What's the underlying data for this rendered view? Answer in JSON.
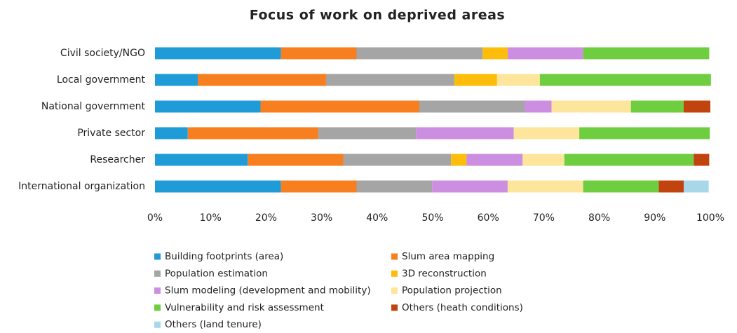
{
  "chart_data": {
    "type": "stacked_barh",
    "title": "Focus of work on deprived areas",
    "categories": [
      "Civil society/NGO",
      "Local government",
      "National government",
      "Private sector",
      "Researcher",
      "International organization"
    ],
    "series": [
      {
        "name": "Building footprints (area)",
        "color": "#1f9bd7",
        "values": [
          22.7,
          7.7,
          19.0,
          5.9,
          16.7,
          22.7
        ]
      },
      {
        "name": "Slum area mapping",
        "color": "#f77f1f",
        "values": [
          13.6,
          23.1,
          28.6,
          23.5,
          17.2,
          13.6
        ]
      },
      {
        "name": "Population estimation",
        "color": "#a5a5a5",
        "values": [
          22.7,
          23.1,
          19.0,
          17.6,
          19.4,
          13.6
        ]
      },
      {
        "name": " 3D reconstruction",
        "color": "#fdbd0a",
        "values": [
          4.5,
          7.7,
          0,
          0,
          2.8,
          0
        ]
      },
      {
        "name": "Slum modeling (development and mobility)",
        "color": "#cc8ee0",
        "values": [
          13.6,
          0,
          4.8,
          17.6,
          10.1,
          13.6
        ]
      },
      {
        "name": "Population projection",
        "color": "#fee59c",
        "values": [
          0,
          7.7,
          14.3,
          11.8,
          7.5,
          13.6
        ]
      },
      {
        "name": "Vulnerability and risk assessment",
        "color": "#6fcd40",
        "values": [
          22.7,
          30.8,
          9.5,
          23.5,
          23.3,
          13.6
        ]
      },
      {
        "name": "Others (heath conditions)",
        "color": "#c1440e",
        "values": [
          0,
          0,
          4.8,
          0,
          2.8,
          4.5
        ]
      },
      {
        "name": "Others (land tenure)",
        "color": "#a9d7ea",
        "values": [
          0,
          0,
          0,
          0,
          0,
          4.5
        ]
      }
    ],
    "xlim": [
      0,
      100
    ],
    "xticks": [
      {
        "value": 0,
        "label": "0%"
      },
      {
        "value": 10,
        "label": "10%"
      },
      {
        "value": 20,
        "label": "20%"
      },
      {
        "value": 30,
        "label": "30%"
      },
      {
        "value": 40,
        "label": "40%"
      },
      {
        "value": 50,
        "label": "50%"
      },
      {
        "value": 60,
        "label": "60%"
      },
      {
        "value": 70,
        "label": "70%"
      },
      {
        "value": 80,
        "label": "80%"
      },
      {
        "value": 90,
        "label": "90%"
      },
      {
        "value": 100,
        "label": "100%"
      }
    ],
    "legend": "bottom"
  }
}
